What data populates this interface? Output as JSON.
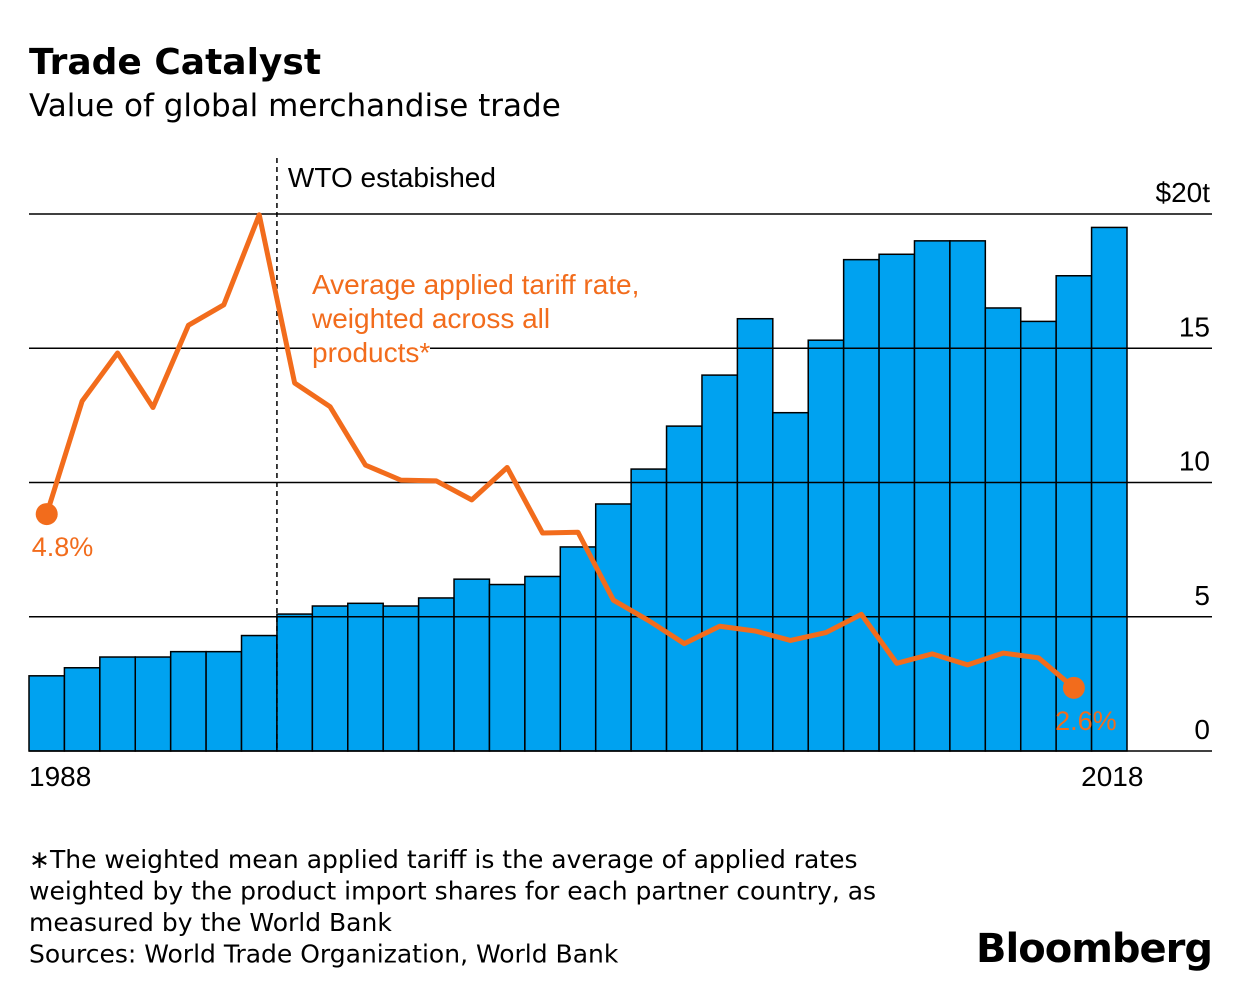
{
  "title": "Trade Catalyst",
  "subtitle": "Value of global merchandise trade",
  "notes": [
    "∗The weighted mean applied tariff is the average of applied rates",
    "weighted by the product import shares for each partner country, as",
    "measured by the World Bank",
    "Sources: World Trade Organization, World Bank"
  ],
  "brand": "Bloomberg",
  "chart_data": {
    "type": "bar",
    "categories": [
      "1988",
      null,
      null,
      null,
      null,
      null,
      null,
      null,
      null,
      null,
      null,
      null,
      null,
      null,
      null,
      null,
      null,
      null,
      null,
      null,
      null,
      null,
      null,
      null,
      null,
      null,
      null,
      null,
      null,
      null,
      "2018"
    ],
    "series": [
      {
        "color": "#00a2f0",
        "values": [
          2.8,
          3.1,
          3.5,
          3.5,
          3.7,
          3.7,
          4.3,
          5.1,
          5.4,
          5.5,
          5.4,
          5.7,
          6.4,
          6.2,
          6.5,
          7.6,
          9.2,
          10.5,
          12.1,
          14.0,
          16.1,
          12.6,
          15.3,
          18.3,
          18.5,
          19.0,
          19.0,
          16.5,
          16.0,
          17.7,
          19.5
        ]
      },
      {
        "type": "line",
        "axis": "y2",
        "name": "Average applied tariff rate, weighted across all products*",
        "color": "#f26c1c",
        "values": [
          4.8,
          6.23,
          6.84,
          6.15,
          7.19,
          7.45,
          8.59,
          6.46,
          6.16,
          5.42,
          5.23,
          5.22,
          4.98,
          5.39,
          4.56,
          4.57,
          3.71,
          3.45,
          3.16,
          3.38,
          3.32,
          3.2,
          3.3,
          3.53,
          2.91,
          3.03,
          2.89,
          3.04,
          2.98,
          2.6,
          null
        ],
        "value_labels": [
          "4.8%",
          null,
          null,
          null,
          null,
          null,
          null,
          null,
          null,
          null,
          null,
          null,
          null,
          null,
          null,
          null,
          null,
          null,
          null,
          null,
          null,
          null,
          null,
          null,
          null,
          null,
          null,
          null,
          null,
          "2.6%",
          null
        ]
      }
    ],
    "ylim": [
      0,
      20
    ],
    "yticks": [
      0,
      5,
      10,
      15,
      {
        "value": 20,
        "label": "$20t"
      }
    ],
    "y2lim": [
      1.8,
      8.6
    ],
    "grid": true,
    "annotations": [
      {
        "text": "WTO estabished",
        "after_category": 6
      }
    ]
  }
}
